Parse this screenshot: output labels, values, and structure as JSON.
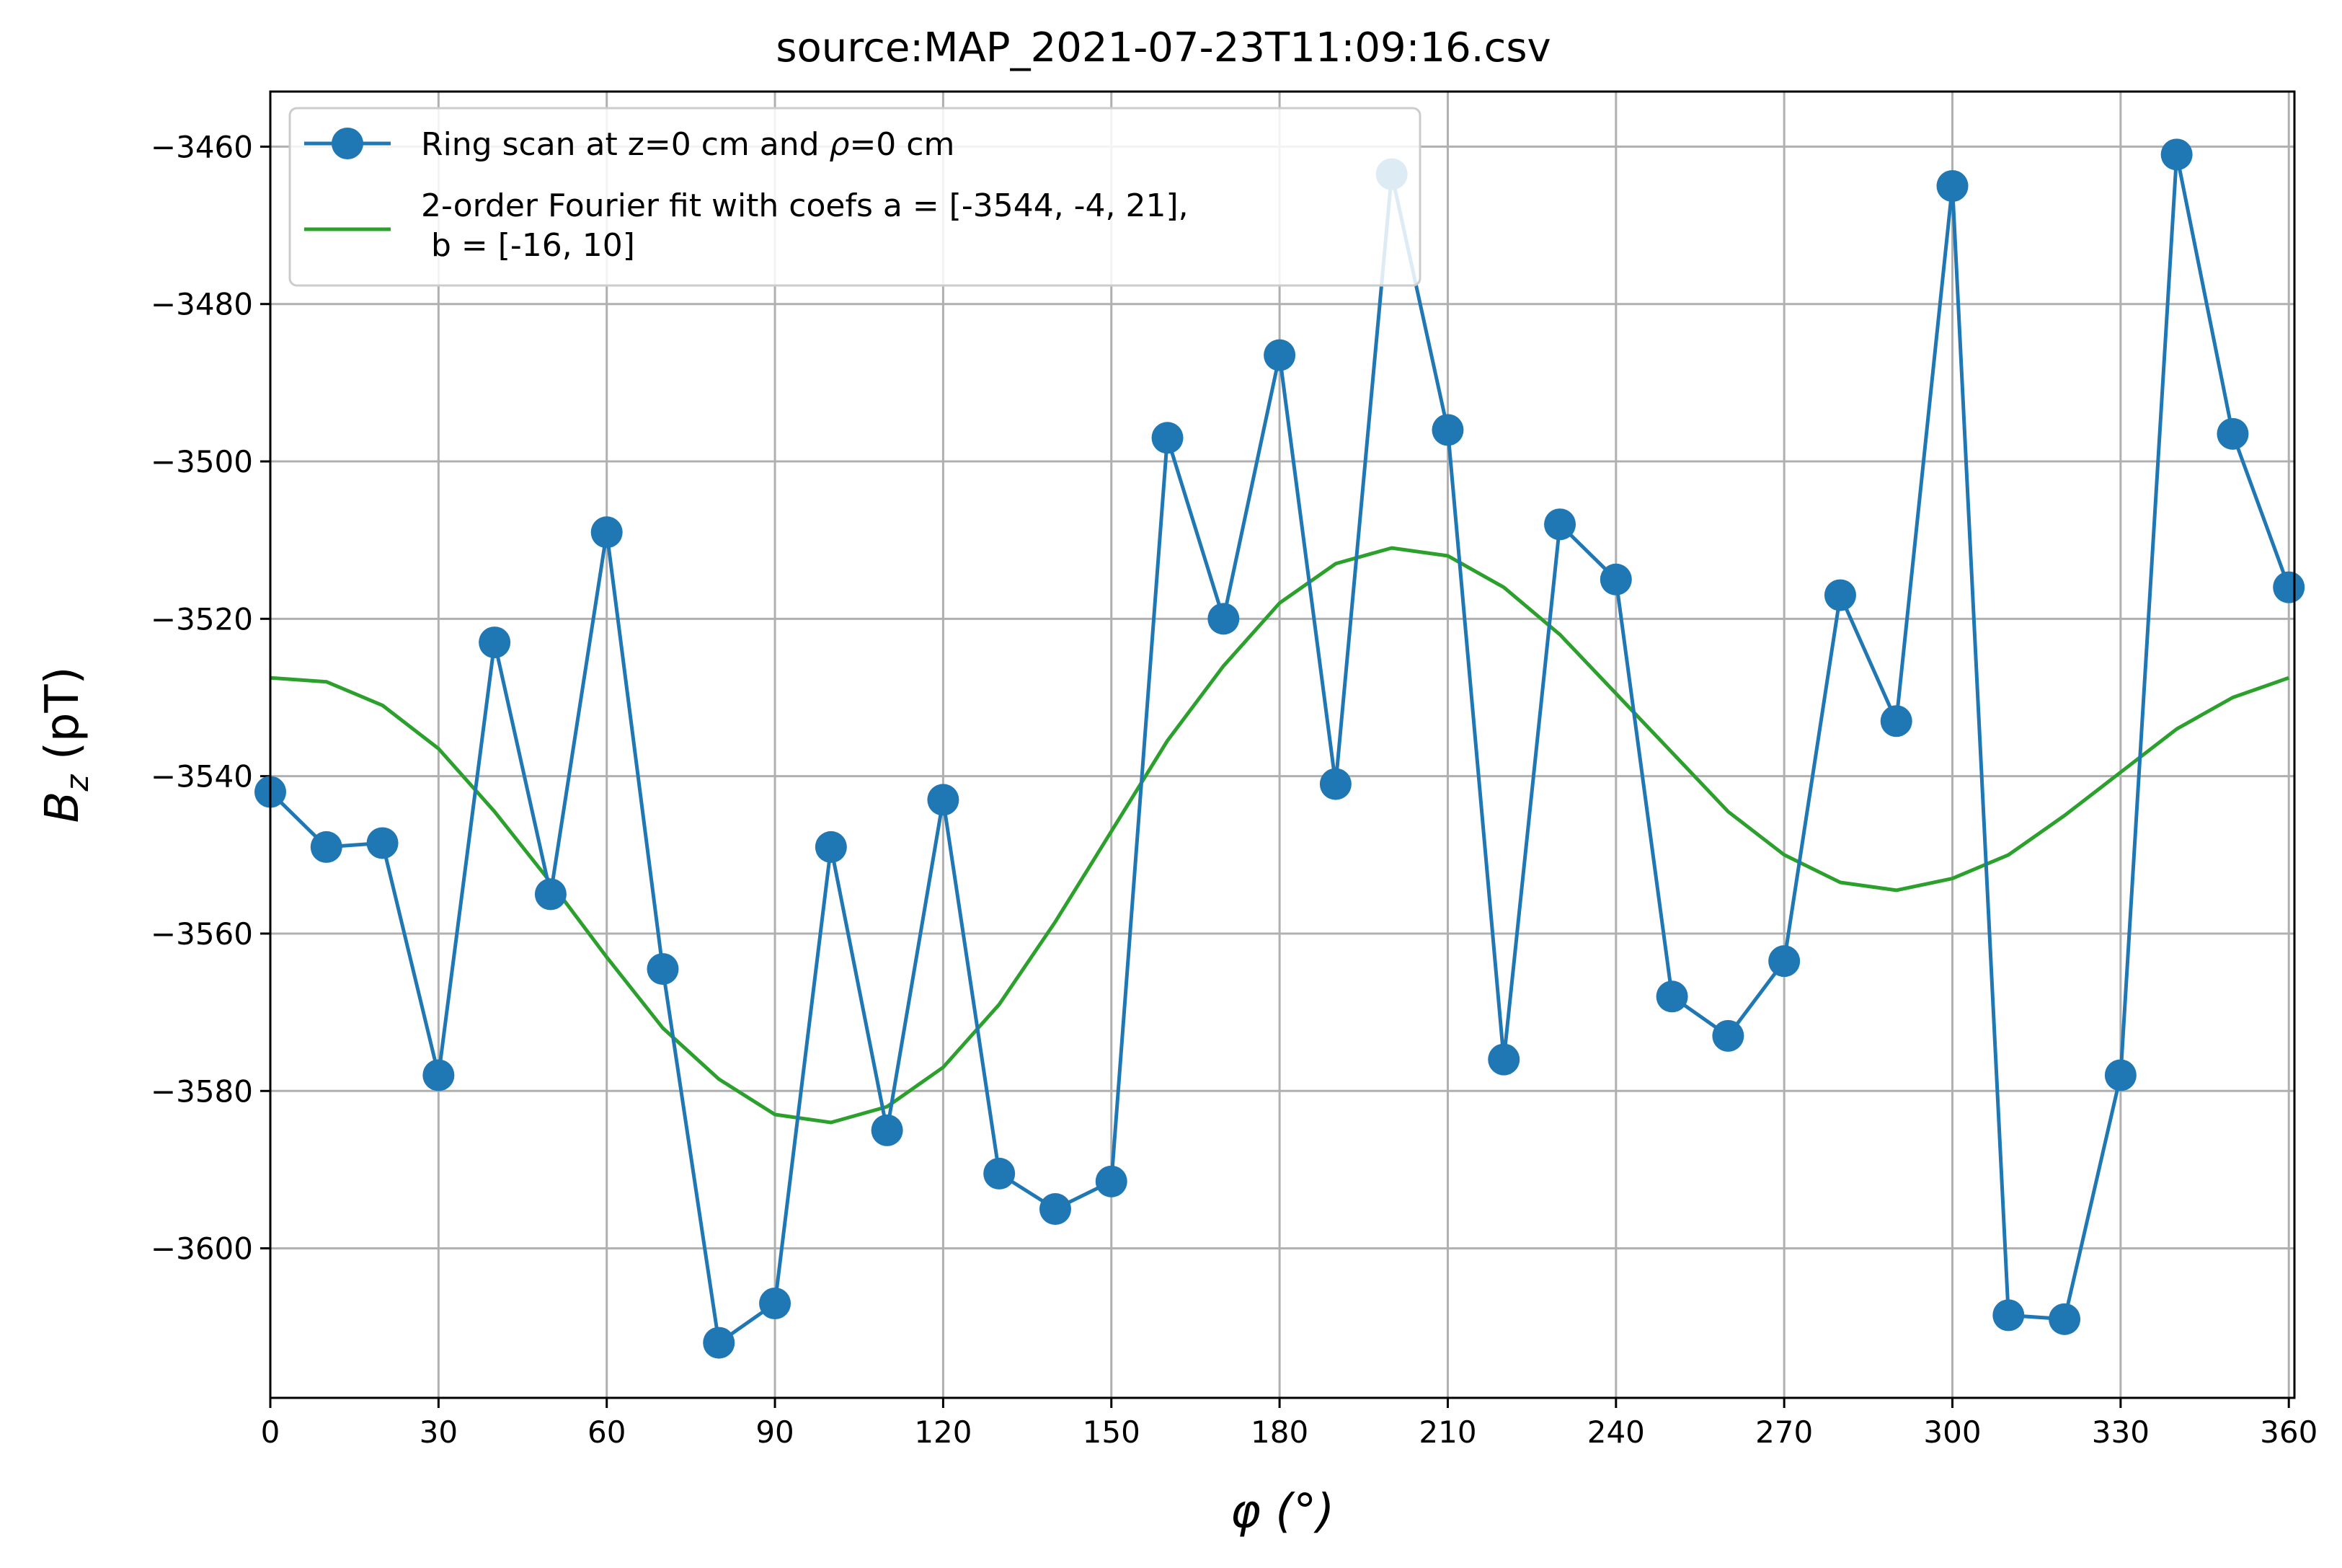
{
  "chart_data": {
    "type": "line",
    "title": "source:MAP_2021-07-23T11:09:16.csv",
    "xlabel": "φ (°)",
    "ylabel_main": "B",
    "ylabel_sub": "z",
    "ylabel_unit": " (pT)",
    "xlim": [
      0,
      361
    ],
    "ylim": [
      -3619,
      -3453
    ],
    "xticks": [
      0,
      30,
      60,
      90,
      120,
      150,
      180,
      210,
      240,
      270,
      300,
      330,
      360
    ],
    "yticks": [
      -3600,
      -3580,
      -3560,
      -3540,
      -3520,
      -3500,
      -3480,
      -3460
    ],
    "xtick_labels": [
      "0",
      "30",
      "60",
      "90",
      "120",
      "150",
      "180",
      "210",
      "240",
      "270",
      "300",
      "330",
      "360"
    ],
    "ytick_labels": [
      "−3600",
      "−3580",
      "−3560",
      "−3540",
      "−3520",
      "−3500",
      "−3480",
      "−3460"
    ],
    "grid": true,
    "legend_position": "upper-left",
    "series": [
      {
        "name": "Ring scan at z=0 cm and ρ=0 cm",
        "legend_label_prefix": "Ring scan at z=0 cm and ",
        "legend_label_rho": "ρ",
        "legend_label_suffix": "=0 cm",
        "color": "#1f77b4",
        "marker": "circle",
        "x": [
          0,
          10,
          20,
          30,
          40,
          50,
          60,
          70,
          80,
          90,
          100,
          110,
          120,
          130,
          140,
          150,
          160,
          170,
          180,
          190,
          200,
          210,
          220,
          230,
          240,
          250,
          260,
          270,
          280,
          290,
          300,
          310,
          320,
          330,
          340,
          350,
          360
        ],
        "values": [
          -3542,
          -3549,
          -3548.5,
          -3578,
          -3523,
          -3555,
          -3509,
          -3564.5,
          -3612,
          -3607,
          -3549,
          -3585,
          -3543,
          -3590.5,
          -3595,
          -3591.5,
          -3497,
          -3520,
          -3486.5,
          -3541,
          -3463.5,
          -3496,
          -3576,
          -3508,
          -3515,
          -3568,
          -3573,
          -3563.5,
          -3517,
          -3533,
          -3465,
          -3608.5,
          -3609,
          -3578,
          -3461,
          -3496.5,
          -3516
        ]
      },
      {
        "name": "2-order Fourier fit with coefs a = [-3544, -4, 21],\n b = [-16, 10]",
        "legend_label_line1": "2-order Fourier fit with coefs a = [-3544, -4, 21],",
        "legend_label_line2": " b = [-16, 10]",
        "color": "#2ca02c",
        "marker": "none",
        "x": [
          0,
          10,
          20,
          30,
          40,
          50,
          60,
          70,
          80,
          90,
          100,
          110,
          120,
          130,
          140,
          150,
          160,
          170,
          180,
          190,
          200,
          210,
          220,
          230,
          240,
          250,
          260,
          270,
          280,
          290,
          300,
          310,
          320,
          330,
          340,
          350,
          360
        ],
        "values": [
          -3527.5,
          -3528,
          -3531,
          -3536.5,
          -3544.5,
          -3553.5,
          -3563,
          -3572,
          -3578.5,
          -3583,
          -3584,
          -3582,
          -3577,
          -3569,
          -3558.5,
          -3547,
          -3535.5,
          -3526,
          -3518,
          -3513,
          -3511,
          -3512,
          -3516,
          -3522,
          -3529.5,
          -3537,
          -3544.5,
          -3550,
          -3553.5,
          -3554.5,
          -3553,
          -3550,
          -3545,
          -3539.5,
          -3534,
          -3530,
          -3527.5
        ]
      }
    ]
  }
}
